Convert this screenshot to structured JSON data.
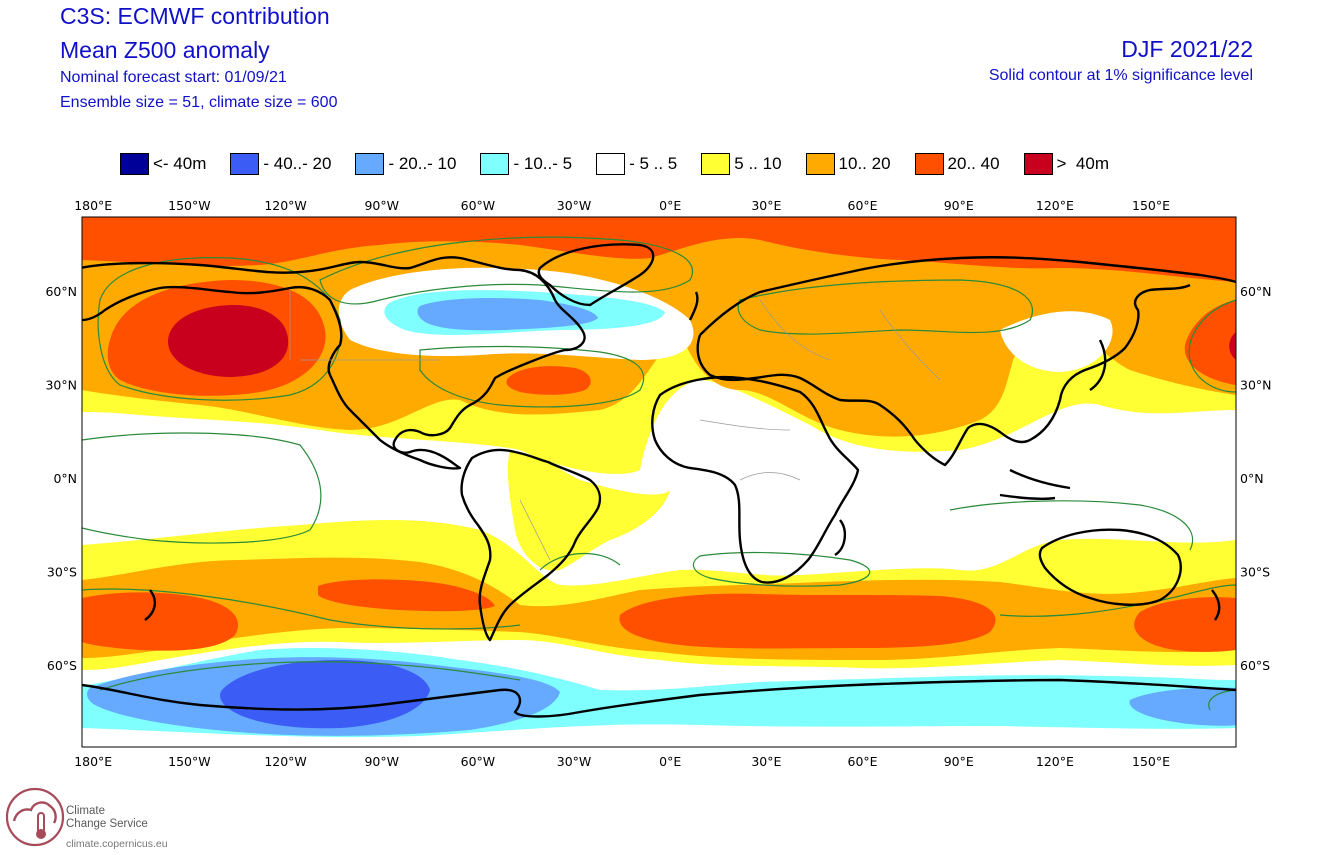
{
  "header": {
    "title": "C3S: ECMWF contribution",
    "subtitle": "Mean Z500 anomaly",
    "forecast_start": "Nominal forecast start: 01/09/21",
    "ensemble": "Ensemble size = 51, climate size = 600",
    "season": "DJF 2021/22",
    "significance": "Solid contour at 1% significance level"
  },
  "legend": [
    {
      "label": "<- 40m",
      "color": "#000099"
    },
    {
      "label": "- 40..- 20",
      "color": "#3b5cf5"
    },
    {
      "label": "- 20..- 10",
      "color": "#66aaff"
    },
    {
      "label": "- 10..- 5",
      "color": "#80ffff"
    },
    {
      "label": "- 5 .. 5",
      "color": "#ffffff"
    },
    {
      "label": "5 .. 10",
      "color": "#ffff33"
    },
    {
      "label": "10.. 20",
      "color": "#ffaa00"
    },
    {
      "label": "20.. 40",
      "color": "#ff5000"
    },
    {
      "label": ">  40m",
      "color": "#c8001e"
    }
  ],
  "axes": {
    "lon_ticks": [
      {
        "lon": -180,
        "label": "180°E"
      },
      {
        "lon": -150,
        "label": "150°W"
      },
      {
        "lon": -120,
        "label": "120°W"
      },
      {
        "lon": -90,
        "label": "90°W"
      },
      {
        "lon": -60,
        "label": "60°W"
      },
      {
        "lon": -30,
        "label": "30°W"
      },
      {
        "lon": 0,
        "label": "0°E"
      },
      {
        "lon": 30,
        "label": "30°E"
      },
      {
        "lon": 60,
        "label": "60°E"
      },
      {
        "lon": 90,
        "label": "90°E"
      },
      {
        "lon": 120,
        "label": "120°E"
      },
      {
        "lon": 150,
        "label": "150°E"
      }
    ],
    "lat_ticks": [
      {
        "lat": 60,
        "label": "60°N"
      },
      {
        "lat": 30,
        "label": "30°N"
      },
      {
        "lat": 0,
        "label": "0°N"
      },
      {
        "lat": -30,
        "label": "-30°S",
        "display": "30°S"
      },
      {
        "lat": -60,
        "label": "60°S"
      }
    ]
  },
  "anomaly_regions": [
    {
      "name": "north-pacific-high",
      "level": "20.. 40"
    },
    {
      "name": "north-pacific-core",
      "level": ">  40m"
    },
    {
      "name": "hudson-bay-low",
      "level": "- 10..- 5"
    },
    {
      "name": "southern-ocean-low",
      "level": "- 40..- 20"
    }
  ],
  "branding": {
    "line1": "Climate",
    "line2": "Change Service",
    "url": "climate.copernicus.eu"
  }
}
